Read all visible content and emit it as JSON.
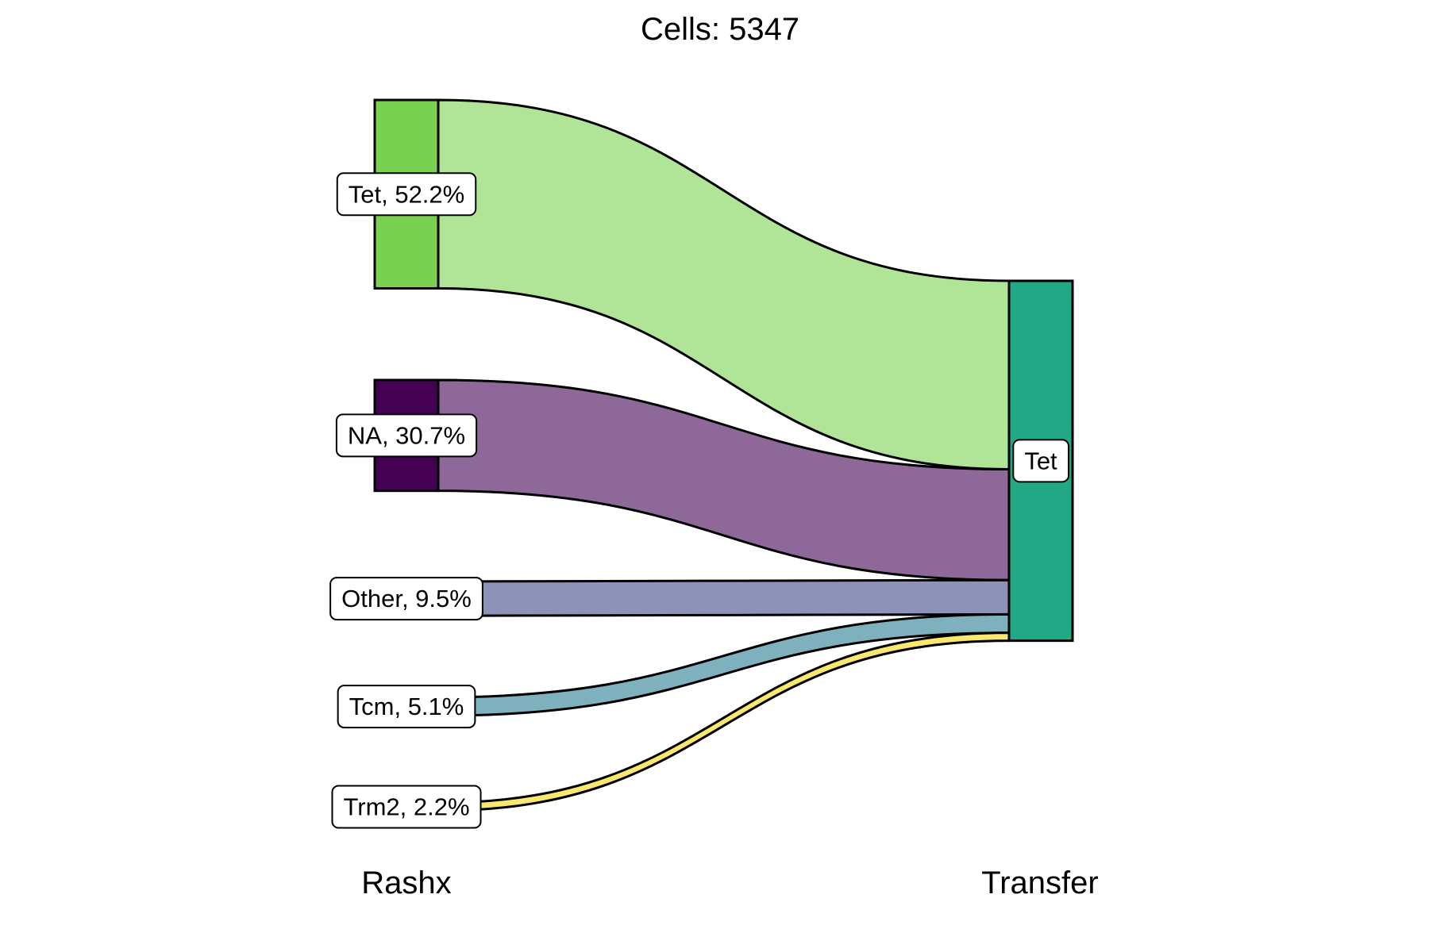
{
  "chart_data": {
    "type": "sankey",
    "title": "Cells:  5347",
    "axes": [
      "Rashx",
      "Transfer"
    ],
    "source_nodes": [
      {
        "name": "Tet",
        "percent": 52.2,
        "label": "Tet, 52.2%",
        "color": "#7AD151",
        "flow_color": "#B0E597"
      },
      {
        "name": "NA",
        "percent": 30.7,
        "label": "NA, 30.7%",
        "color": "#440154",
        "flow_color": "#8E6898"
      },
      {
        "name": "Other",
        "percent": 9.5,
        "label": "Other, 9.5%",
        "color": "#8D92B8",
        "flow_color": "#8D92B8"
      },
      {
        "name": "Tcm",
        "percent": 5.1,
        "label": "Tcm, 5.1%",
        "color": "#7EB0BD",
        "flow_color": "#7EB0BD"
      },
      {
        "name": "Trm2",
        "percent": 2.2,
        "label": "Trm2, 2.2%",
        "color": "#F9E76E",
        "flow_color": "#F9E76E"
      }
    ],
    "target_nodes": [
      {
        "name": "Tet",
        "label": "Tet",
        "color": "#22A884"
      }
    ],
    "flows": [
      {
        "from": "Tet",
        "to": "Tet"
      },
      {
        "from": "NA",
        "to": "Tet"
      },
      {
        "from": "Other",
        "to": "Tet"
      },
      {
        "from": "Tcm",
        "to": "Tet"
      },
      {
        "from": "Trm2",
        "to": "Tet"
      }
    ]
  }
}
